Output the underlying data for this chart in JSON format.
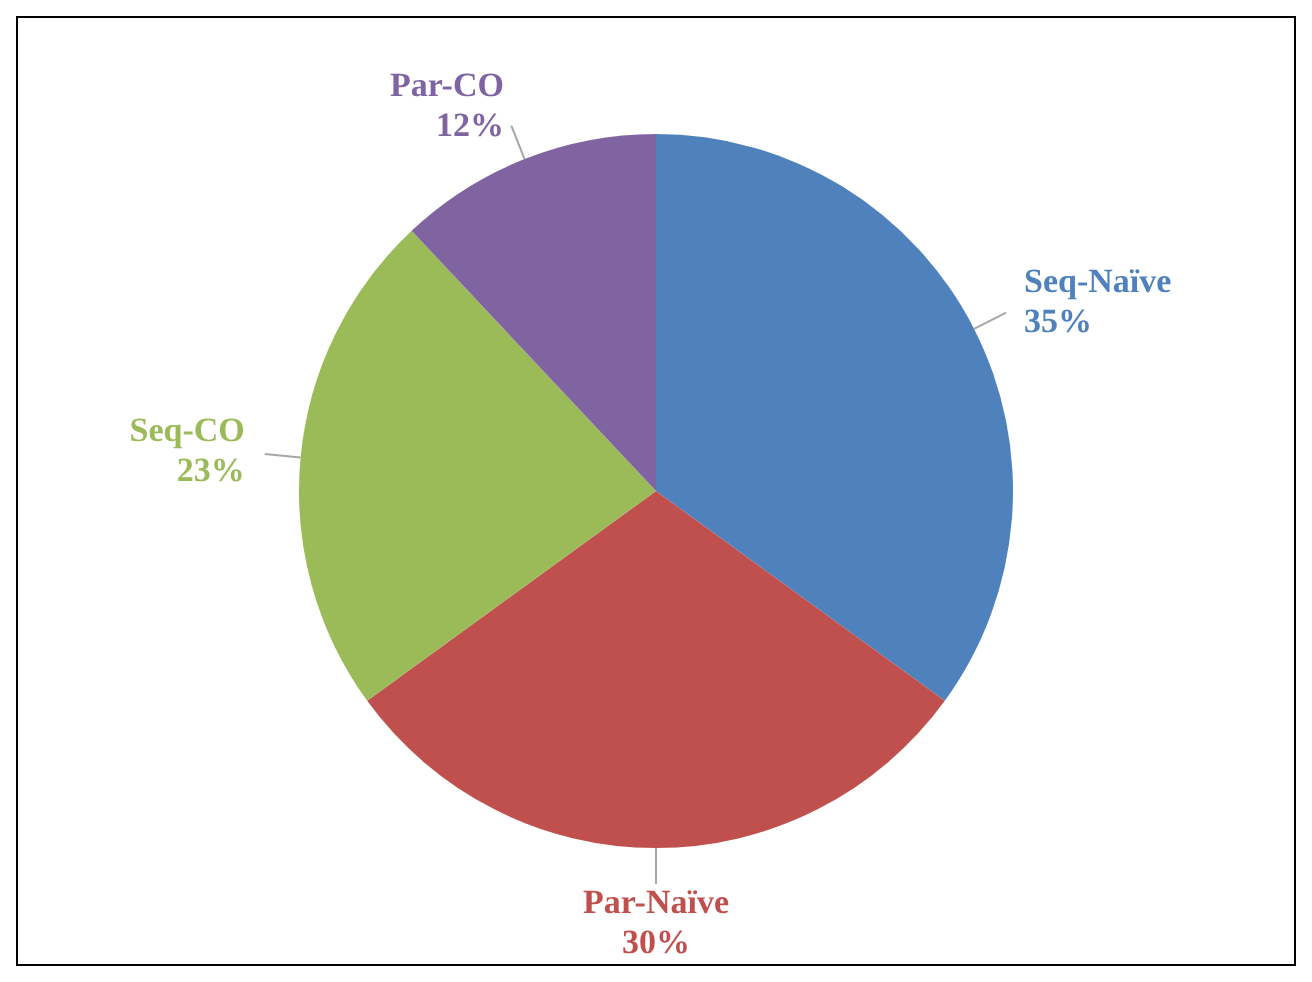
{
  "chart_data": {
    "type": "pie",
    "categories": [
      "Seq-Naïve",
      "Par-Naïve",
      "Seq-CO",
      "Par-CO"
    ],
    "values": [
      35,
      30,
      23,
      12
    ],
    "colors": [
      "#4f81bd",
      "#c0504d",
      "#9bbb59",
      "#8064a2"
    ],
    "value_labels": [
      "35%",
      "30%",
      "23%",
      "12%"
    ],
    "legend": false
  }
}
